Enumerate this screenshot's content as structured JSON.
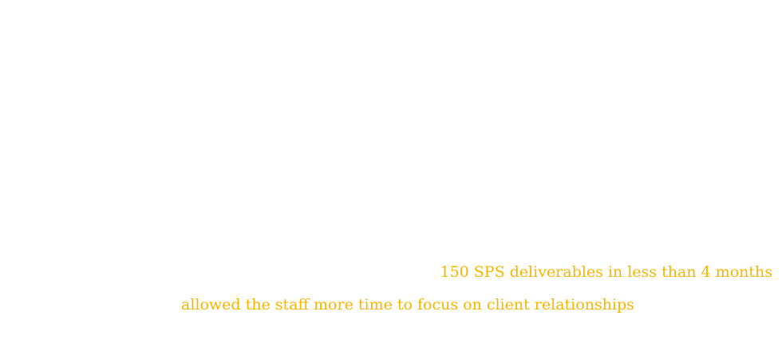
{
  "accent_color": "#f7b500",
  "quote": {
    "line1": "150 SPS deliverables in less than 4 months",
    "line2": "allowed the staff more time to focus on client relationships"
  }
}
